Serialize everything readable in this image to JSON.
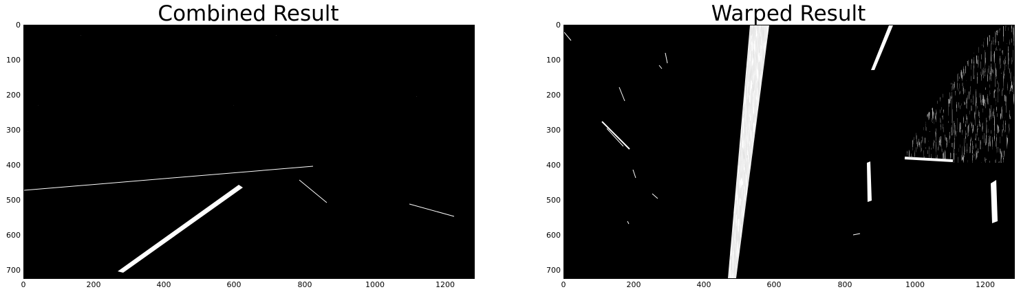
{
  "panels": [
    {
      "title": "Combined Result",
      "x_ticks": [
        "0",
        "200",
        "400",
        "600",
        "800",
        "1000",
        "1200"
      ],
      "y_ticks": [
        "0",
        "100",
        "200",
        "300",
        "400",
        "500",
        "600",
        "700"
      ]
    },
    {
      "title": "Warped Result",
      "x_ticks": [
        "0",
        "200",
        "400",
        "600",
        "800",
        "1000",
        "1200"
      ],
      "y_ticks": [
        "0",
        "100",
        "200",
        "300",
        "400",
        "500",
        "600",
        "700"
      ]
    }
  ]
}
